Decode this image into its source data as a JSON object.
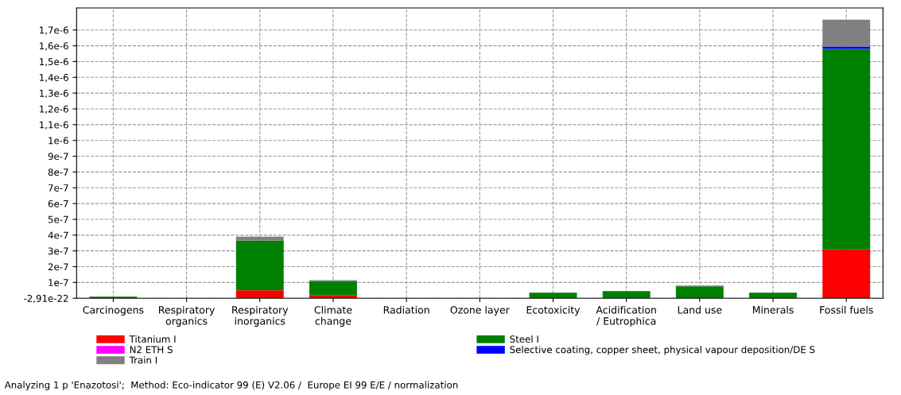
{
  "chart_data": {
    "type": "bar",
    "stacked": true,
    "grid": true,
    "legend": "bottom",
    "categories": [
      "Carcinogens",
      "Respiratory\norganics",
      "Respiratory\ninorganics",
      "Climate\nchange",
      "Radiation",
      "Ozone layer",
      "Ecotoxicity",
      "Acidification\n/ Eutrophica",
      "Land use",
      "Minerals",
      "Fossil fuels"
    ],
    "series": [
      {
        "name": "Titanium I",
        "color": "#ff0000",
        "values": [
          0,
          0,
          5e-08,
          2e-08,
          0,
          0,
          0,
          0,
          0,
          0,
          3.1e-07
        ]
      },
      {
        "name": "Steel I",
        "color": "#008000",
        "values": [
          1e-08,
          0,
          3.15e-07,
          9e-08,
          0,
          0,
          3.5e-08,
          4.5e-08,
          7.5e-08,
          3.5e-08,
          1.27e-06
        ]
      },
      {
        "name": "N2 ETH S",
        "color": "#ff00ff",
        "values": [
          0,
          0,
          0,
          0,
          0,
          0,
          0,
          0,
          0,
          0,
          0
        ]
      },
      {
        "name": "Selective coating, copper sheet, physical vapour deposition/DE S",
        "color": "#0000ff",
        "values": [
          0,
          0,
          0,
          0,
          0,
          0,
          0,
          0,
          0,
          0,
          1.5e-08
        ]
      },
      {
        "name": "Train I",
        "color": "#808080",
        "values": [
          0,
          0,
          2.5e-08,
          5e-09,
          0,
          0,
          0,
          0,
          5e-09,
          0,
          1.7e-07
        ]
      }
    ],
    "ylim": [
      -2.91e-22,
      1.84e-06
    ],
    "yticks": [
      {
        "value": -2.91e-22,
        "label": "-2,91e-22"
      },
      {
        "value": 1e-07,
        "label": "1e-7"
      },
      {
        "value": 2e-07,
        "label": "2e-7"
      },
      {
        "value": 3e-07,
        "label": "3e-7"
      },
      {
        "value": 4e-07,
        "label": "4e-7"
      },
      {
        "value": 5e-07,
        "label": "5e-7"
      },
      {
        "value": 6e-07,
        "label": "6e-7"
      },
      {
        "value": 7e-07,
        "label": "7e-7"
      },
      {
        "value": 8e-07,
        "label": "8e-7"
      },
      {
        "value": 9e-07,
        "label": "9e-7"
      },
      {
        "value": 1e-06,
        "label": "1e-6"
      },
      {
        "value": 1.1e-06,
        "label": "1,1e-6"
      },
      {
        "value": 1.2e-06,
        "label": "1,2e-6"
      },
      {
        "value": 1.3e-06,
        "label": "1,3e-6"
      },
      {
        "value": 1.4e-06,
        "label": "1,4e-6"
      },
      {
        "value": 1.5e-06,
        "label": "1,5e-6"
      },
      {
        "value": 1.6e-06,
        "label": "1,6e-6"
      },
      {
        "value": 1.7e-06,
        "label": "1,7e-6"
      }
    ],
    "annotations": [
      "Analyzing 1 p 'Enazotosi';  Method: Eco-indicator 99 (E) V2.06 /  Europe EI 99 E/E / normalization"
    ]
  }
}
